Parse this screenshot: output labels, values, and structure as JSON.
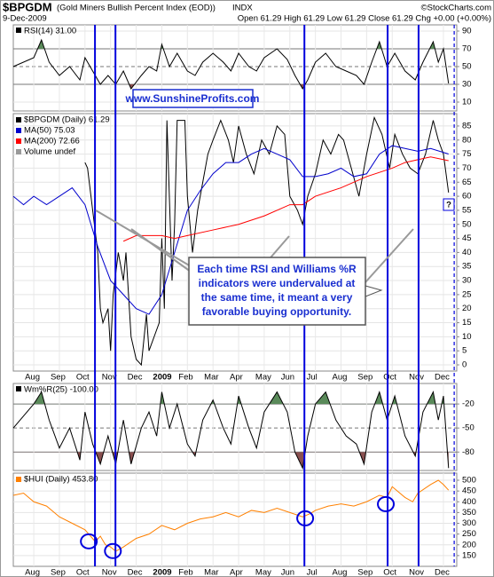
{
  "header": {
    "symbol": "$BPGDM",
    "name": "(Gold Miners Bullish Percent Index (EOD))",
    "exchange": "INDX",
    "source": "©StockCharts.com",
    "date": "9-Dec-2009",
    "quote": "Open 61.29 High 61.29 Low 61.29 Close 61.29 Chg +0.00 (+0.00%)"
  },
  "annotations": {
    "website": "www.SunshineProfits.com",
    "note_lines": [
      "Each time RSI and Williams %R",
      "indicators were undervalued at",
      "the same time, it meant a very",
      "favorable buying opportunity."
    ],
    "question": "?"
  },
  "markers": {
    "solid": [
      3.39,
      4.19,
      11.57,
      14.82,
      16.03
    ],
    "dashed": 17.42
  },
  "chart_data": [
    {
      "type": "line",
      "title": "RSI(14) 31.00",
      "xlim": [
        0.2,
        17.52
      ],
      "ylim": [
        0,
        97
      ],
      "yticks": [
        10,
        30,
        50,
        70,
        90
      ],
      "overbought": 70,
      "oversold": 30,
      "midline": 50,
      "series": [
        {
          "name": "RSI(14)",
          "color": "#000000",
          "x": [
            0.2,
            1.0,
            1.3,
            1.6,
            2.0,
            2.4,
            2.8,
            3.0,
            3.3,
            3.6,
            3.9,
            4.2,
            4.5,
            4.8,
            5.2,
            5.5,
            5.8,
            6.0,
            6.3,
            6.6,
            7.0,
            7.3,
            7.6,
            8.0,
            8.4,
            8.7,
            9.0,
            9.4,
            9.7,
            10.0,
            10.5,
            10.9,
            11.2,
            11.5,
            11.7,
            12.0,
            12.4,
            12.8,
            13.2,
            13.6,
            13.9,
            14.2,
            14.5,
            14.8,
            15.1,
            15.5,
            15.9,
            16.2,
            16.6,
            16.8,
            17.0,
            17.2
          ],
          "values": [
            50,
            60,
            80,
            55,
            40,
            50,
            35,
            60,
            45,
            30,
            40,
            30,
            45,
            25,
            40,
            50,
            45,
            75,
            50,
            65,
            45,
            40,
            55,
            65,
            55,
            45,
            65,
            50,
            45,
            60,
            70,
            58,
            40,
            25,
            35,
            55,
            65,
            50,
            45,
            40,
            30,
            55,
            78,
            50,
            65,
            45,
            35,
            55,
            78,
            55,
            70,
            31
          ]
        }
      ]
    },
    {
      "type": "line",
      "xlim": [
        0.2,
        17.52
      ],
      "ylim": [
        -2.2,
        89.4
      ],
      "yticks": [
        0,
        5,
        10,
        15,
        20,
        25,
        30,
        35,
        40,
        45,
        50,
        55,
        60,
        65,
        70,
        75,
        80,
        85
      ],
      "xticks": [
        {
          "value": 1,
          "label": "Aug"
        },
        {
          "value": 2,
          "label": "Sep"
        },
        {
          "value": 3,
          "label": "Oct"
        },
        {
          "value": 4,
          "label": "Nov"
        },
        {
          "value": 5,
          "label": "Dec"
        },
        {
          "value": 6,
          "label": "2009"
        },
        {
          "value": 7,
          "label": "Feb"
        },
        {
          "value": 8,
          "label": "Mar"
        },
        {
          "value": 9,
          "label": "Apr"
        },
        {
          "value": 10,
          "label": "May"
        },
        {
          "value": 11,
          "label": "Jun"
        },
        {
          "value": 12,
          "label": "Jul"
        },
        {
          "value": 13,
          "label": "Aug"
        },
        {
          "value": 14,
          "label": "Sep"
        },
        {
          "value": 15,
          "label": "Oct"
        },
        {
          "value": 16,
          "label": "Nov"
        },
        {
          "value": 17,
          "label": "Dec"
        }
      ],
      "legend_extra": "Volume undef",
      "series": [
        {
          "name": "$BPGDM (Daily) 61.29",
          "color": "#000000",
          "x": [
            3.0,
            3.1,
            3.3,
            3.5,
            3.6,
            3.7,
            3.9,
            4.0,
            4.1,
            4.3,
            4.5,
            4.6,
            4.8,
            5.0,
            5.2,
            5.4,
            5.5,
            5.7,
            5.9,
            6.0,
            6.1,
            6.2,
            6.4,
            6.5,
            6.6,
            6.9,
            7.0,
            7.2,
            7.4,
            7.6,
            7.8,
            8.0,
            8.3,
            8.6,
            8.8,
            9.0,
            9.3,
            9.6,
            9.9,
            10.2,
            10.5,
            10.8,
            11.0,
            11.3,
            11.5,
            11.7,
            12.0,
            12.3,
            12.6,
            12.9,
            13.1,
            13.4,
            13.7,
            14.0,
            14.3,
            14.6,
            14.9,
            15.1,
            15.4,
            15.7,
            16.0,
            16.3,
            16.6,
            16.8,
            17.0,
            17.2
          ],
          "values": [
            72,
            70,
            55,
            40,
            20,
            15,
            20,
            5,
            25,
            40,
            30,
            40,
            10,
            2,
            0,
            18,
            5,
            10,
            15,
            45,
            20,
            87,
            30,
            50,
            87,
            87,
            60,
            40,
            55,
            65,
            75,
            80,
            87,
            80,
            72,
            85,
            75,
            68,
            80,
            75,
            85,
            82,
            60,
            55,
            50,
            60,
            68,
            80,
            75,
            82,
            80,
            70,
            60,
            75,
            88,
            82,
            70,
            82,
            75,
            70,
            68,
            75,
            87,
            80,
            75,
            61.29
          ]
        },
        {
          "name": "MA(50) 75.03",
          "color": "#0000cc",
          "x": [
            0.2,
            0.6,
            1.0,
            1.5,
            2.0,
            2.5,
            3.0,
            3.5,
            4.0,
            4.5,
            5.0,
            5.5,
            6.0,
            6.5,
            7.0,
            7.5,
            8.0,
            8.5,
            9.0,
            9.5,
            10.0,
            10.5,
            11.0,
            11.5,
            12.0,
            12.5,
            13.0,
            13.5,
            14.0,
            14.5,
            15.0,
            15.5,
            16.0,
            16.5,
            17.2
          ],
          "values": [
            60,
            57,
            60,
            57,
            60,
            63,
            57,
            42,
            30,
            25,
            20,
            18,
            25,
            40,
            55,
            62,
            68,
            72,
            72,
            75,
            77,
            75,
            73,
            67,
            67,
            68,
            70,
            67,
            68,
            75,
            78,
            77,
            76,
            77,
            75.03
          ]
        },
        {
          "name": "MA(200) 72.66",
          "color": "#ff0000",
          "x": [
            4.5,
            5.0,
            6.0,
            6.5,
            7.0,
            8.0,
            9.0,
            10.0,
            11.0,
            11.5,
            12.0,
            13.0,
            14.0,
            15.0,
            15.5,
            16.0,
            16.5,
            17.2
          ],
          "values": [
            44,
            46,
            46,
            45,
            46,
            48,
            50,
            53,
            57,
            57,
            60,
            63,
            67,
            70,
            72,
            73,
            74,
            72.66
          ]
        }
      ]
    },
    {
      "type": "line",
      "title": "Wm%R(25) -100.00",
      "xlim": [
        0.2,
        17.52
      ],
      "ylim": [
        -103,
        5.6
      ],
      "yticks": [
        -80,
        -50,
        -20
      ],
      "overbought": -20,
      "oversold": -80,
      "midline": -50,
      "series": [
        {
          "name": "Wm%R(25)",
          "color": "#000000",
          "x": [
            0.2,
            1.0,
            1.3,
            1.6,
            2.0,
            2.4,
            2.8,
            3.0,
            3.3,
            3.6,
            3.9,
            4.2,
            4.5,
            4.8,
            5.2,
            5.5,
            5.8,
            6.0,
            6.3,
            6.6,
            7.0,
            7.3,
            7.6,
            8.0,
            8.4,
            8.7,
            9.0,
            9.4,
            9.7,
            10.0,
            10.5,
            10.9,
            11.2,
            11.5,
            11.7,
            12.0,
            12.4,
            12.8,
            13.2,
            13.6,
            13.9,
            14.2,
            14.5,
            14.8,
            15.1,
            15.5,
            15.9,
            16.2,
            16.6,
            16.8,
            17.0,
            17.2
          ],
          "values": [
            -50,
            -20,
            -5,
            -40,
            -75,
            -50,
            -90,
            -30,
            -70,
            -95,
            -60,
            -95,
            -40,
            -95,
            -50,
            -30,
            -60,
            -5,
            -50,
            -20,
            -70,
            -85,
            -40,
            -15,
            -50,
            -70,
            -10,
            -50,
            -75,
            -30,
            -5,
            -30,
            -80,
            -100,
            -60,
            -20,
            -5,
            -40,
            -60,
            -70,
            -95,
            -30,
            -5,
            -40,
            -10,
            -60,
            -85,
            -30,
            -5,
            -40,
            -10,
            -100
          ]
        }
      ]
    },
    {
      "type": "line",
      "xlim": [
        0.2,
        17.52
      ],
      "ylim": [
        100,
        533
      ],
      "yticks": [
        150,
        200,
        250,
        300,
        350,
        400,
        450,
        500
      ],
      "xticks": [
        {
          "value": 1,
          "label": "Aug"
        },
        {
          "value": 2,
          "label": "Sep"
        },
        {
          "value": 3,
          "label": "Oct"
        },
        {
          "value": 4,
          "label": "Nov"
        },
        {
          "value": 5,
          "label": "Dec"
        },
        {
          "value": 6,
          "label": "2009"
        },
        {
          "value": 7,
          "label": "Feb"
        },
        {
          "value": 8,
          "label": "Mar"
        },
        {
          "value": 9,
          "label": "Apr"
        },
        {
          "value": 10,
          "label": "May"
        },
        {
          "value": 11,
          "label": "Jun"
        },
        {
          "value": 12,
          "label": "Jul"
        },
        {
          "value": 13,
          "label": "Aug"
        },
        {
          "value": 14,
          "label": "Sep"
        },
        {
          "value": 15,
          "label": "Oct"
        },
        {
          "value": 16,
          "label": "Nov"
        },
        {
          "value": 17,
          "label": "Dec"
        }
      ],
      "highlights": [
        {
          "x": 3.15,
          "y": 216
        },
        {
          "x": 4.09,
          "y": 171
        },
        {
          "x": 11.6,
          "y": 323
        },
        {
          "x": 14.75,
          "y": 389
        }
      ],
      "series": [
        {
          "name": "$HUI (Daily) 453.80",
          "color": "#ff8000",
          "x": [
            0.2,
            0.6,
            1.0,
            1.5,
            2.0,
            2.5,
            3.0,
            3.4,
            3.6,
            3.8,
            4.0,
            4.2,
            4.5,
            5.0,
            5.5,
            6.0,
            6.5,
            7.0,
            7.5,
            8.0,
            8.5,
            9.0,
            9.5,
            10.0,
            10.5,
            11.0,
            11.5,
            11.8,
            12.0,
            12.5,
            13.0,
            13.5,
            14.0,
            14.5,
            14.8,
            15.0,
            15.5,
            15.8,
            16.0,
            16.5,
            16.8,
            17.0,
            17.2
          ],
          "values": [
            430,
            440,
            400,
            380,
            330,
            300,
            270,
            215,
            240,
            200,
            190,
            170,
            190,
            230,
            250,
            290,
            270,
            300,
            320,
            330,
            350,
            330,
            360,
            350,
            370,
            350,
            330,
            345,
            360,
            380,
            390,
            380,
            400,
            430,
            420,
            470,
            420,
            400,
            440,
            480,
            500,
            480,
            453.8
          ]
        }
      ]
    }
  ]
}
